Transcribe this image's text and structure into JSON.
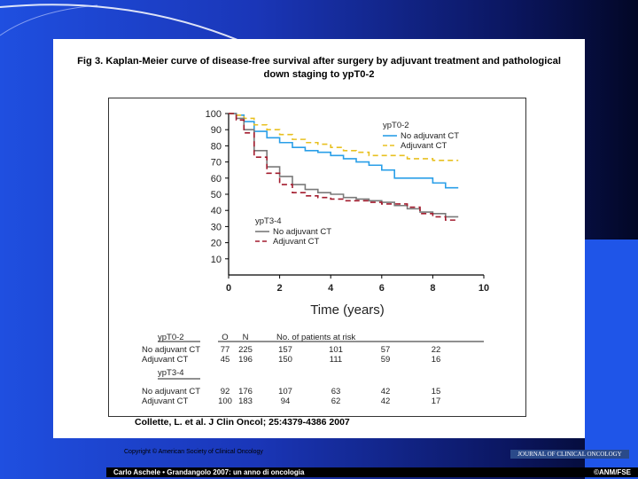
{
  "title": {
    "line1": "Fig 3. Kaplan-Meier curve of disease-free survival after surgery by adjuvant treatment and pathological",
    "line2": "down staging to ypT0-2"
  },
  "chart_data": {
    "type": "line",
    "xlabel": "Time (years)",
    "ylabel": "",
    "xlim": [
      0,
      10
    ],
    "ylim": [
      0,
      100
    ],
    "x_ticks": [
      "0",
      "2",
      "4",
      "6",
      "8",
      "10"
    ],
    "y_ticks": [
      "10",
      "20",
      "30",
      "40",
      "50",
      "60",
      "70",
      "80",
      "90",
      "100"
    ],
    "grid": false,
    "legend_groups": [
      {
        "title": "ypT0-2",
        "placement": "top-right",
        "entries": [
          "No adjuvant CT",
          "Adjuvant CT"
        ]
      },
      {
        "title": "ypT3-4",
        "placement": "bottom-left",
        "entries": [
          "No adjuvant CT",
          "Adjuvant CT"
        ]
      }
    ],
    "series": [
      {
        "group": "ypT0-2",
        "name": "No adjuvant CT",
        "color": "#2a9fe8",
        "dash": "solid",
        "points": [
          [
            0,
            100
          ],
          [
            0.3,
            99
          ],
          [
            0.6,
            95
          ],
          [
            1,
            89
          ],
          [
            1.5,
            85
          ],
          [
            2,
            82
          ],
          [
            2.5,
            79
          ],
          [
            3,
            77
          ],
          [
            3.5,
            76
          ],
          [
            4,
            74
          ],
          [
            4.5,
            72
          ],
          [
            5,
            70
          ],
          [
            5.5,
            68
          ],
          [
            6,
            65
          ],
          [
            6.5,
            60
          ],
          [
            7,
            60
          ],
          [
            7.5,
            60
          ],
          [
            8,
            57
          ],
          [
            8.5,
            54
          ],
          [
            9,
            54
          ]
        ]
      },
      {
        "group": "ypT0-2",
        "name": "Adjuvant CT",
        "color": "#e8c020",
        "dash": "dashed",
        "points": [
          [
            0,
            100
          ],
          [
            0.3,
            99
          ],
          [
            0.6,
            97
          ],
          [
            1,
            93
          ],
          [
            1.5,
            90
          ],
          [
            2,
            87
          ],
          [
            2.5,
            84
          ],
          [
            3,
            82
          ],
          [
            3.5,
            81
          ],
          [
            4,
            79
          ],
          [
            4.5,
            77
          ],
          [
            5,
            76
          ],
          [
            5.5,
            74
          ],
          [
            6,
            74
          ],
          [
            6.5,
            74
          ],
          [
            7,
            72
          ],
          [
            7.5,
            72
          ],
          [
            8,
            71
          ],
          [
            8.5,
            71
          ],
          [
            9,
            71
          ]
        ]
      },
      {
        "group": "ypT3-4",
        "name": "No adjuvant CT",
        "color": "#7a7a7a",
        "dash": "solid",
        "points": [
          [
            0,
            100
          ],
          [
            0.3,
            97
          ],
          [
            0.6,
            90
          ],
          [
            1,
            77
          ],
          [
            1.5,
            67
          ],
          [
            2,
            61
          ],
          [
            2.5,
            56
          ],
          [
            3,
            53
          ],
          [
            3.5,
            51
          ],
          [
            4,
            50
          ],
          [
            4.5,
            48
          ],
          [
            5,
            47
          ],
          [
            5.5,
            46
          ],
          [
            6,
            45
          ],
          [
            6.5,
            43
          ],
          [
            7,
            41
          ],
          [
            7.5,
            39
          ],
          [
            8,
            38
          ],
          [
            8.5,
            36
          ],
          [
            9,
            36
          ]
        ]
      },
      {
        "group": "ypT3-4",
        "name": "Adjuvant CT",
        "color": "#a31c2e",
        "dash": "dashed",
        "points": [
          [
            0,
            100
          ],
          [
            0.3,
            96
          ],
          [
            0.6,
            88
          ],
          [
            1,
            73
          ],
          [
            1.5,
            63
          ],
          [
            2,
            56
          ],
          [
            2.5,
            51
          ],
          [
            3,
            49
          ],
          [
            3.5,
            48
          ],
          [
            4,
            47
          ],
          [
            4.5,
            46
          ],
          [
            5,
            46
          ],
          [
            5.5,
            45
          ],
          [
            6,
            44
          ],
          [
            6.5,
            44
          ],
          [
            7,
            42
          ],
          [
            7.5,
            38
          ],
          [
            8,
            36
          ],
          [
            8.5,
            34
          ],
          [
            9,
            34
          ]
        ]
      }
    ],
    "risk_table": {
      "headers": {
        "group": "ypT0-2",
        "o": "O",
        "n": "N",
        "at_risk": "No. of patients at risk"
      },
      "groups": [
        {
          "title": "ypT0-2",
          "rows": [
            {
              "label": "No adjuvant CT",
              "o": "77",
              "n": "225",
              "risk": [
                "157",
                "101",
                "57",
                "22"
              ]
            },
            {
              "label": "Adjuvant CT",
              "o": "45",
              "n": "196",
              "risk": [
                "150",
                "111",
                "59",
                "16"
              ]
            }
          ]
        },
        {
          "title": "ypT3-4",
          "rows": [
            {
              "label": "No adjuvant CT",
              "o": "92",
              "n": "176",
              "risk": [
                "107",
                "63",
                "42",
                "15"
              ]
            },
            {
              "label": "Adjuvant CT",
              "o": "100",
              "n": "183",
              "risk": [
                "94",
                "62",
                "42",
                "17"
              ]
            }
          ]
        }
      ]
    }
  },
  "citation": "Collette, L. et al. J Clin Oncol; 25:4379-4386 2007",
  "copyright": "Copyright © American Society of Clinical Oncology",
  "journal_banner": "JOURNAL OF CLINICAL ONCOLOGY",
  "footer": {
    "left": "Carlo Aschele • Grandangolo 2007: un anno di oncologia",
    "right": "©ANM/FSE"
  }
}
